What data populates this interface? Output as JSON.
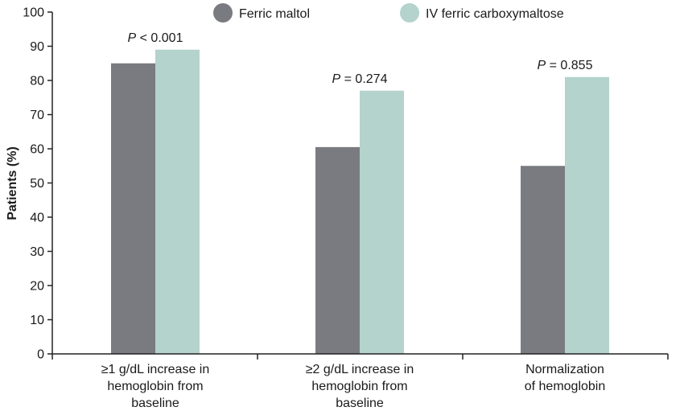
{
  "chart_data": {
    "type": "bar",
    "title": "",
    "ylabel": "Patients (%)",
    "xlabel": "",
    "ylim": [
      0,
      100
    ],
    "yticks": [
      0,
      10,
      20,
      30,
      40,
      50,
      60,
      70,
      80,
      90,
      100
    ],
    "grid": false,
    "legend_position": "top",
    "categories": [
      [
        "≥1 g/dL increase in",
        "hemoglobin from",
        "baseline"
      ],
      [
        "≥2 g/dL increase in",
        "hemoglobin from",
        "baseline"
      ],
      [
        "Normalization",
        "of hemoglobin"
      ]
    ],
    "series": [
      {
        "name": "Ferric maltol",
        "color": "#7a7b80",
        "values": [
          85,
          60.5,
          55
        ]
      },
      {
        "name": "IV ferric carboxymaltose",
        "color": "#b3d3cc",
        "values": [
          89,
          77,
          81
        ]
      }
    ],
    "annotations": [
      {
        "prefix": "P",
        "text": " < 0.001"
      },
      {
        "prefix": "P",
        "text": " = 0.274"
      },
      {
        "prefix": "P",
        "text": " = 0.855"
      }
    ]
  }
}
